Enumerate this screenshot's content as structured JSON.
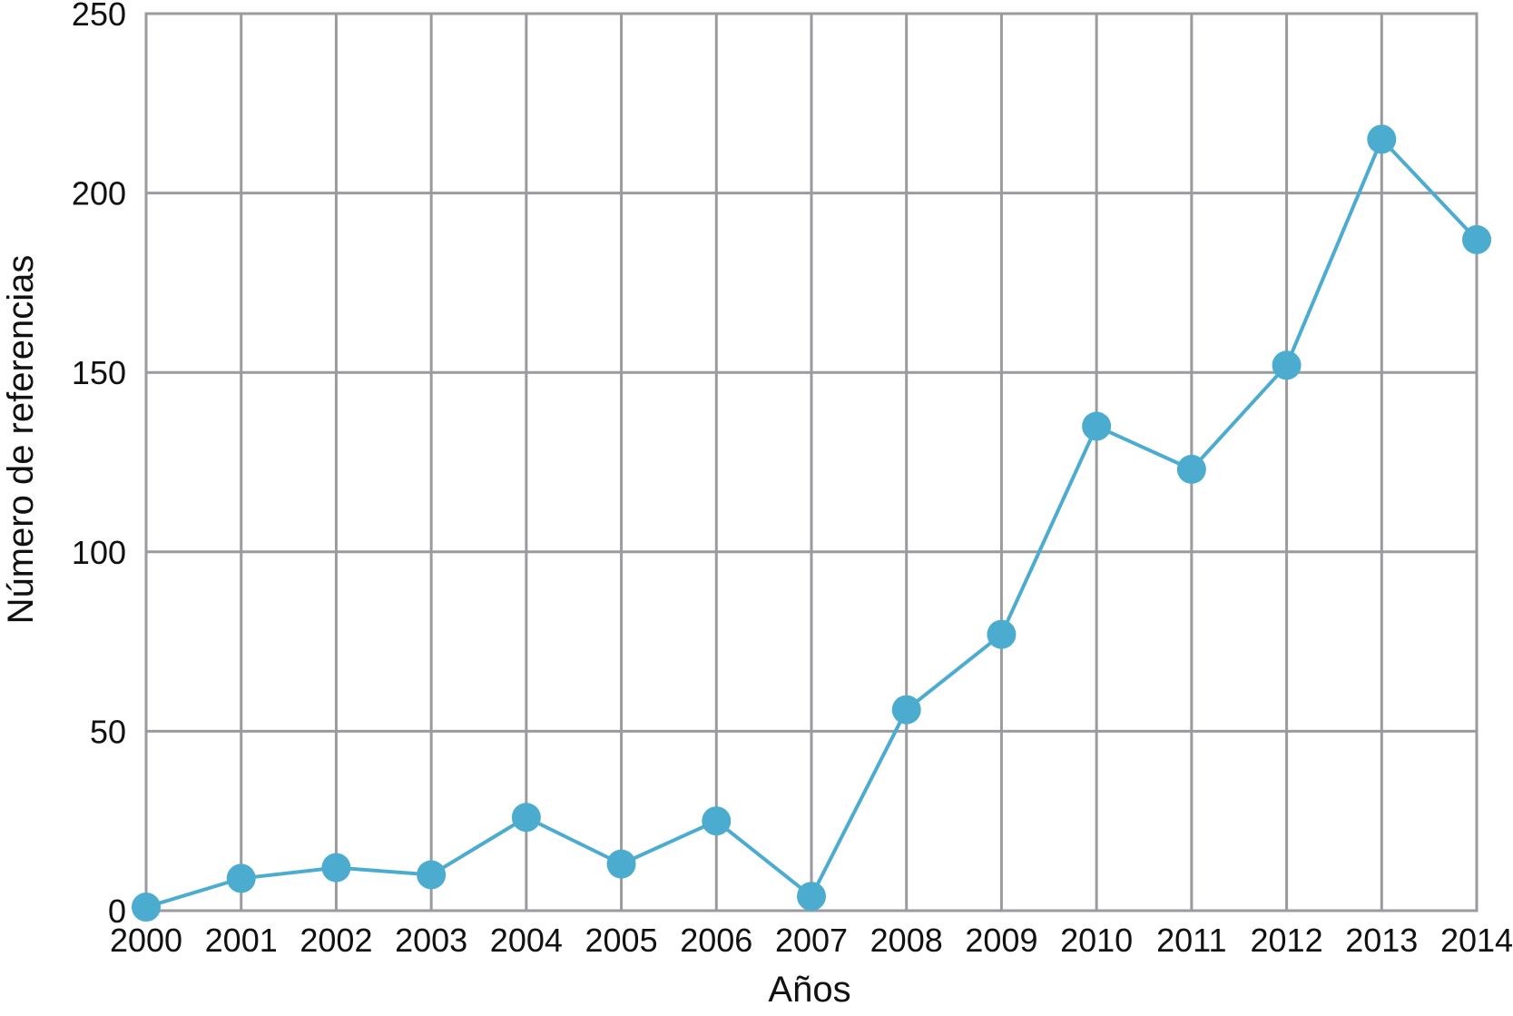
{
  "chart_data": {
    "type": "line",
    "title": "",
    "xlabel": "Años",
    "ylabel": "Número de referencias",
    "x": [
      2000,
      2001,
      2002,
      2003,
      2004,
      2005,
      2006,
      2007,
      2008,
      2009,
      2010,
      2011,
      2012,
      2013,
      2014
    ],
    "series": [
      {
        "values": [
          1,
          9,
          12,
          10,
          26,
          13,
          25,
          4,
          56,
          77,
          135,
          123,
          152,
          215,
          187
        ]
      }
    ],
    "xlim": [
      2000,
      2014
    ],
    "ylim": [
      0,
      250
    ],
    "yticks": [
      0,
      50,
      100,
      150,
      200,
      250
    ],
    "grid": true,
    "line_color": "#4bacd0",
    "marker": "circle",
    "grid_color": "#9a9a9f"
  }
}
